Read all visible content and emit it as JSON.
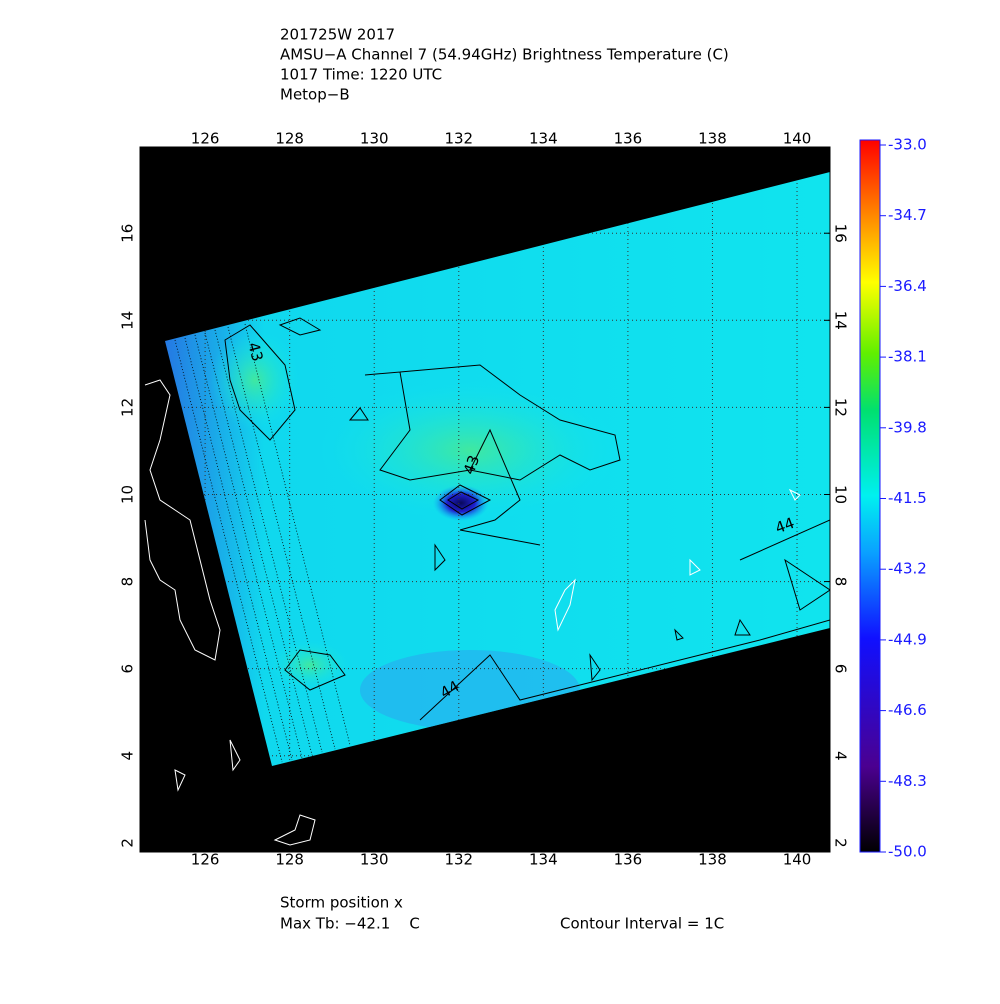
{
  "chart_data": {
    "type": "map",
    "title_lines": [
      "201725W 2017",
      "AMSU−A Channel 7 (54.94GHz) Brightness Temperature (C)",
      "1017 Time: 1220 UTC",
      "Metop−B"
    ],
    "xlim": [
      124.46,
      140.78
    ],
    "xticks": [
      126,
      128,
      130,
      132,
      134,
      136,
      138,
      140
    ],
    "ylim": [
      1.79,
      17.98
    ],
    "yticks": [
      2,
      4,
      6,
      8,
      10,
      12,
      14,
      16
    ],
    "grid": true,
    "colorbar": {
      "lim": [
        -50,
        -33
      ],
      "ticks": [
        {
          "value": -33,
          "label": "-33.0"
        },
        -34.7,
        -36.4,
        -38.1,
        -39.8,
        -41.5,
        -43.2,
        -44.9,
        -46.6,
        -48.3,
        {
          "value": -50,
          "label": "-50.0"
        }
      ]
    },
    "contour_labels": [
      "43",
      "43",
      "44",
      "44"
    ],
    "footer": {
      "storm": "Storm position x",
      "max_tb": "Max Tb: −42.1    C",
      "interval": "Contour Interval = 1C"
    }
  }
}
